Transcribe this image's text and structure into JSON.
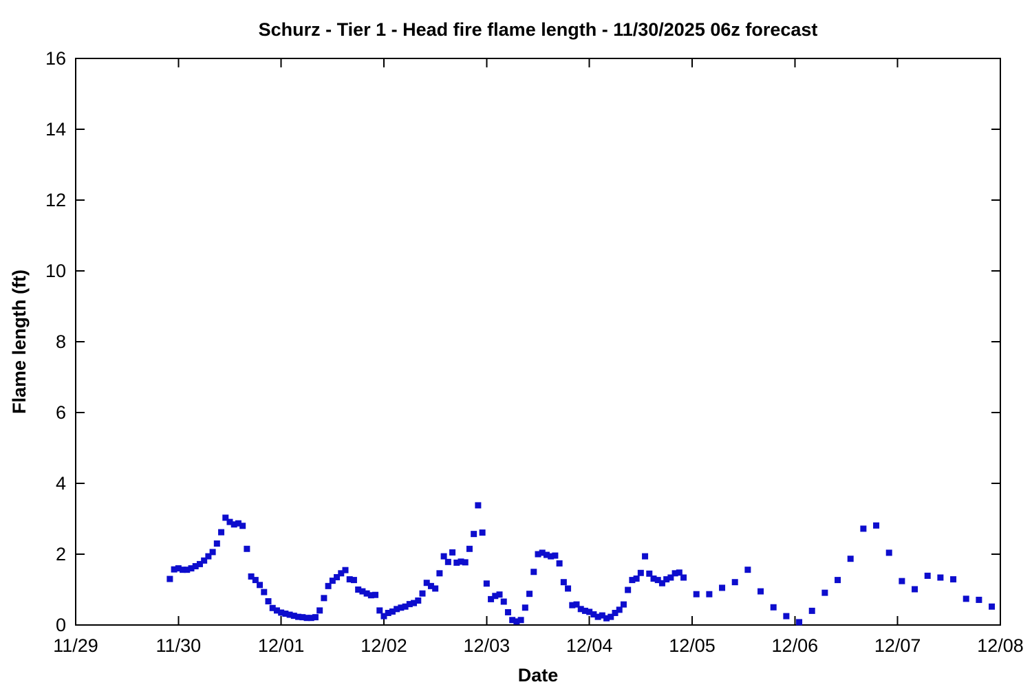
{
  "page": {
    "background_color": "#ffffff",
    "axis_color": "#000000"
  },
  "chart_data": {
    "type": "scatter",
    "title": "Schurz - Tier 1 - Head fire flame length - 11/30/2025 06z forecast",
    "xlabel": "Date",
    "ylabel": "Flame length (ft)",
    "x_tick_labels": [
      "11/29",
      "11/30",
      "12/01",
      "12/02",
      "12/03",
      "12/04",
      "12/05",
      "12/06",
      "12/07",
      "12/08"
    ],
    "x_tick_hours": [
      0,
      24,
      48,
      72,
      96,
      120,
      144,
      168,
      192,
      216
    ],
    "y_ticks": [
      0,
      2,
      4,
      6,
      8,
      10,
      12,
      14,
      16
    ],
    "ylim": [
      0,
      16
    ],
    "xlim_hours": [
      0,
      216
    ],
    "x_unit": "hours since 11/29 00:00",
    "grid": false,
    "legend": null,
    "marker": {
      "shape": "square",
      "color": "#0d0dcd",
      "size": 9
    },
    "series": [
      {
        "name": "Head fire flame length (ft)",
        "points": [
          [
            22,
            1.3
          ],
          [
            23,
            1.57
          ],
          [
            24,
            1.6
          ],
          [
            25,
            1.56
          ],
          [
            26,
            1.56
          ],
          [
            27,
            1.6
          ],
          [
            28,
            1.66
          ],
          [
            29,
            1.72
          ],
          [
            30,
            1.82
          ],
          [
            31,
            1.94
          ],
          [
            32,
            2.06
          ],
          [
            33,
            2.3
          ],
          [
            34,
            2.62
          ],
          [
            35,
            3.03
          ],
          [
            36,
            2.91
          ],
          [
            37,
            2.84
          ],
          [
            38,
            2.87
          ],
          [
            39,
            2.8
          ],
          [
            40,
            2.15
          ],
          [
            41,
            1.37
          ],
          [
            42,
            1.27
          ],
          [
            43,
            1.13
          ],
          [
            44,
            0.93
          ],
          [
            45,
            0.67
          ],
          [
            46,
            0.48
          ],
          [
            47,
            0.41
          ],
          [
            48,
            0.35
          ],
          [
            49,
            0.32
          ],
          [
            50,
            0.29
          ],
          [
            51,
            0.26
          ],
          [
            52,
            0.23
          ],
          [
            53,
            0.22
          ],
          [
            54,
            0.2
          ],
          [
            55,
            0.2
          ],
          [
            56,
            0.22
          ],
          [
            57,
            0.41
          ],
          [
            58,
            0.76
          ],
          [
            59,
            1.1
          ],
          [
            60,
            1.25
          ],
          [
            61,
            1.35
          ],
          [
            62,
            1.46
          ],
          [
            63,
            1.55
          ],
          [
            64,
            1.29
          ],
          [
            65,
            1.27
          ],
          [
            66,
            1.0
          ],
          [
            67,
            0.95
          ],
          [
            68,
            0.89
          ],
          [
            69,
            0.84
          ],
          [
            70,
            0.85
          ],
          [
            71,
            0.41
          ],
          [
            72,
            0.25
          ],
          [
            73,
            0.34
          ],
          [
            74,
            0.38
          ],
          [
            75,
            0.45
          ],
          [
            76,
            0.49
          ],
          [
            77,
            0.52
          ],
          [
            78,
            0.59
          ],
          [
            79,
            0.62
          ],
          [
            80,
            0.69
          ],
          [
            81,
            0.89
          ],
          [
            82,
            1.19
          ],
          [
            83,
            1.1
          ],
          [
            84,
            1.03
          ],
          [
            85,
            1.46
          ],
          [
            86,
            1.94
          ],
          [
            87,
            1.78
          ],
          [
            88,
            2.05
          ],
          [
            89,
            1.76
          ],
          [
            90,
            1.79
          ],
          [
            91,
            1.77
          ],
          [
            92,
            2.15
          ],
          [
            93,
            2.57
          ],
          [
            94,
            3.38
          ],
          [
            95,
            2.61
          ],
          [
            96,
            1.17
          ],
          [
            97,
            0.73
          ],
          [
            98,
            0.82
          ],
          [
            99,
            0.86
          ],
          [
            100,
            0.66
          ],
          [
            101,
            0.36
          ],
          [
            102,
            0.14
          ],
          [
            103,
            0.1
          ],
          [
            104,
            0.14
          ],
          [
            105,
            0.49
          ],
          [
            106,
            0.88
          ],
          [
            107,
            1.5
          ],
          [
            108,
            2.0
          ],
          [
            109,
            2.04
          ],
          [
            110,
            1.98
          ],
          [
            111,
            1.94
          ],
          [
            112,
            1.96
          ],
          [
            113,
            1.74
          ],
          [
            114,
            1.21
          ],
          [
            115,
            1.03
          ],
          [
            116,
            0.56
          ],
          [
            117,
            0.58
          ],
          [
            118,
            0.45
          ],
          [
            119,
            0.4
          ],
          [
            120,
            0.37
          ],
          [
            121,
            0.3
          ],
          [
            122,
            0.23
          ],
          [
            123,
            0.27
          ],
          [
            124,
            0.19
          ],
          [
            125,
            0.23
          ],
          [
            126,
            0.34
          ],
          [
            127,
            0.43
          ],
          [
            128,
            0.58
          ],
          [
            129,
            0.99
          ],
          [
            130,
            1.27
          ],
          [
            131,
            1.31
          ],
          [
            132,
            1.47
          ],
          [
            133,
            1.94
          ],
          [
            134,
            1.45
          ],
          [
            135,
            1.31
          ],
          [
            136,
            1.27
          ],
          [
            137,
            1.18
          ],
          [
            138,
            1.29
          ],
          [
            139,
            1.34
          ],
          [
            140,
            1.46
          ],
          [
            141,
            1.48
          ],
          [
            142,
            1.34
          ],
          [
            145,
            0.87
          ],
          [
            148,
            0.87
          ],
          [
            151,
            1.05
          ],
          [
            154,
            1.21
          ],
          [
            157,
            1.56
          ],
          [
            160,
            0.95
          ],
          [
            163,
            0.5
          ],
          [
            166,
            0.25
          ],
          [
            169,
            0.08
          ],
          [
            172,
            0.4
          ],
          [
            175,
            0.91
          ],
          [
            178,
            1.27
          ],
          [
            181,
            1.87
          ],
          [
            184,
            2.72
          ],
          [
            187,
            2.81
          ],
          [
            190,
            2.04
          ],
          [
            193,
            1.24
          ],
          [
            196,
            1.01
          ],
          [
            199,
            1.39
          ],
          [
            202,
            1.34
          ],
          [
            205,
            1.29
          ],
          [
            208,
            0.74
          ],
          [
            211,
            0.71
          ],
          [
            214,
            0.52
          ]
        ]
      }
    ]
  }
}
